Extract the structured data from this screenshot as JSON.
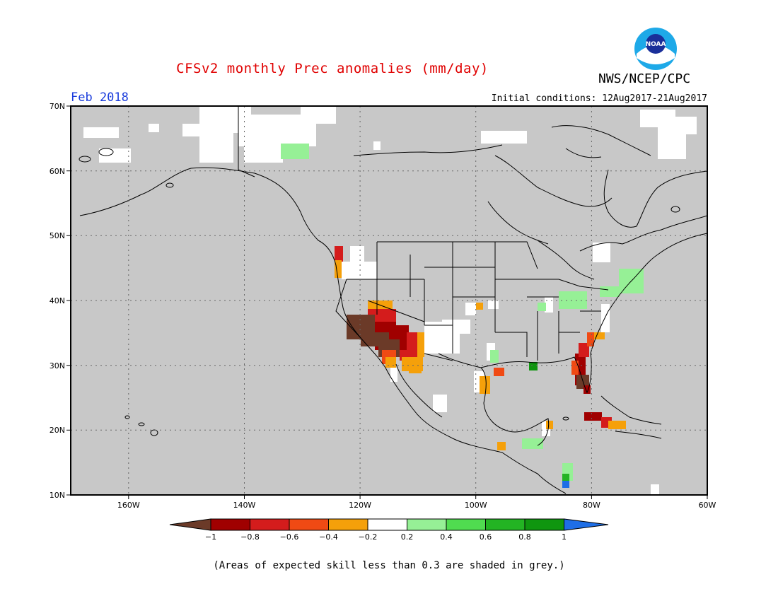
{
  "header": {
    "title": "CFSv2 monthly Prec anomalies (mm/day)",
    "org": "NWS/NCEP/CPC",
    "period": "Feb 2018",
    "initial_conditions": "Initial conditions: 12Aug2017-21Aug2017",
    "logo_text": "NOAA"
  },
  "map": {
    "lat_labels": [
      "70N",
      "60N",
      "50N",
      "40N",
      "30N",
      "20N",
      "10N"
    ],
    "lon_labels": [
      "160W",
      "140W",
      "120W",
      "100W",
      "80W",
      "60W"
    ],
    "unshaded_color": "#c8c8c8",
    "no_anomaly_color": "#ffffff"
  },
  "legend": {
    "tick_labels": [
      "−1",
      "−0.8",
      "−0.6",
      "−0.4",
      "−0.2",
      "0.2",
      "0.4",
      "0.6",
      "0.8",
      "1"
    ],
    "colors": [
      "#6b3a28",
      "#a00000",
      "#d41c1c",
      "#f04a14",
      "#f5a00a",
      "#ffffff",
      "#96f096",
      "#50dc50",
      "#23b423",
      "#0f960f",
      "#1e6ee6"
    ]
  },
  "footnote": "(Areas of expected skill less than 0.3 are shaded in grey.)"
}
